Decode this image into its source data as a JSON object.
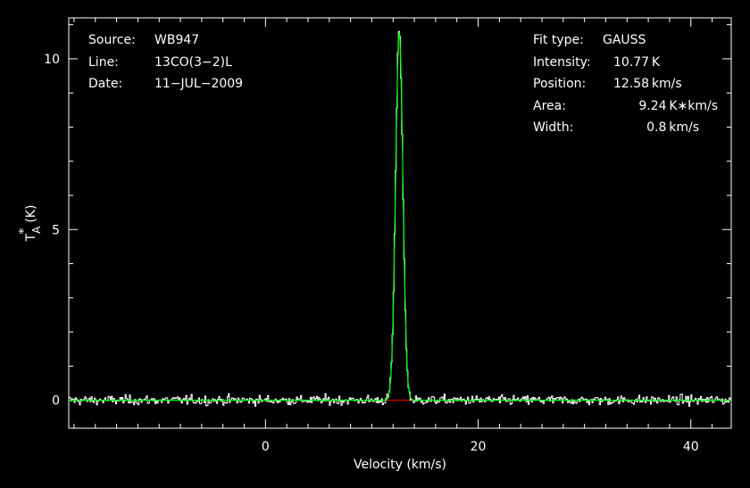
{
  "header_left": [
    {
      "label": "Source:",
      "value": "WB947"
    },
    {
      "label": "Line:",
      "value": "13CO(3−2)L"
    },
    {
      "label": "Date:",
      "value": "11−JUL−2009"
    }
  ],
  "header_right": [
    {
      "label": "Fit type:",
      "value": "GAUSS"
    },
    {
      "label": "Intensity:",
      "value": "10.77 K"
    },
    {
      "label": "Position:",
      "value": "12.58 km/s"
    },
    {
      "label": "Area:",
      "value": "9.24 K∗km/s"
    },
    {
      "label": "Width:",
      "value": "0.8 km/s"
    }
  ],
  "colors": {
    "spectrum": "#ffffff",
    "fit": "#00ff00",
    "baseline": "#ff0000",
    "axes": "#ffffff",
    "background": "#000000"
  },
  "chart_data": {
    "type": "line",
    "xlabel": "Velocity (km/s)",
    "ylabel": "T*A (K)",
    "ylabel_main": "T",
    "ylabel_sup": "*",
    "ylabel_sub": "A",
    "ylabel_unit": "(K)",
    "xlim": [
      -18.5,
      43.8
    ],
    "ylim": [
      -0.82,
      11.2
    ],
    "x_ticks": [
      {
        "value": 0,
        "label": "0"
      },
      {
        "value": 20,
        "label": "20"
      },
      {
        "value": 40,
        "label": "40"
      }
    ],
    "y_ticks": [
      {
        "value": 0,
        "label": "0"
      },
      {
        "value": 5,
        "label": "5"
      },
      {
        "value": 10,
        "label": "10"
      }
    ],
    "x_minor_step": 2,
    "y_minor_step": 1,
    "series": [
      {
        "kind": "spectrum",
        "style": "histogram",
        "x_start": -18.5,
        "x_end": 43.8,
        "channel_width": 0.1,
        "peak_value": 10.8,
        "noise_rms": 0.07
      },
      {
        "kind": "gaussian_fit",
        "amplitude": 10.77,
        "center": 12.58,
        "fwhm": 0.8
      },
      {
        "kind": "baseline",
        "value": 0,
        "x_range": [
          10.8,
          14.6
        ]
      }
    ]
  }
}
